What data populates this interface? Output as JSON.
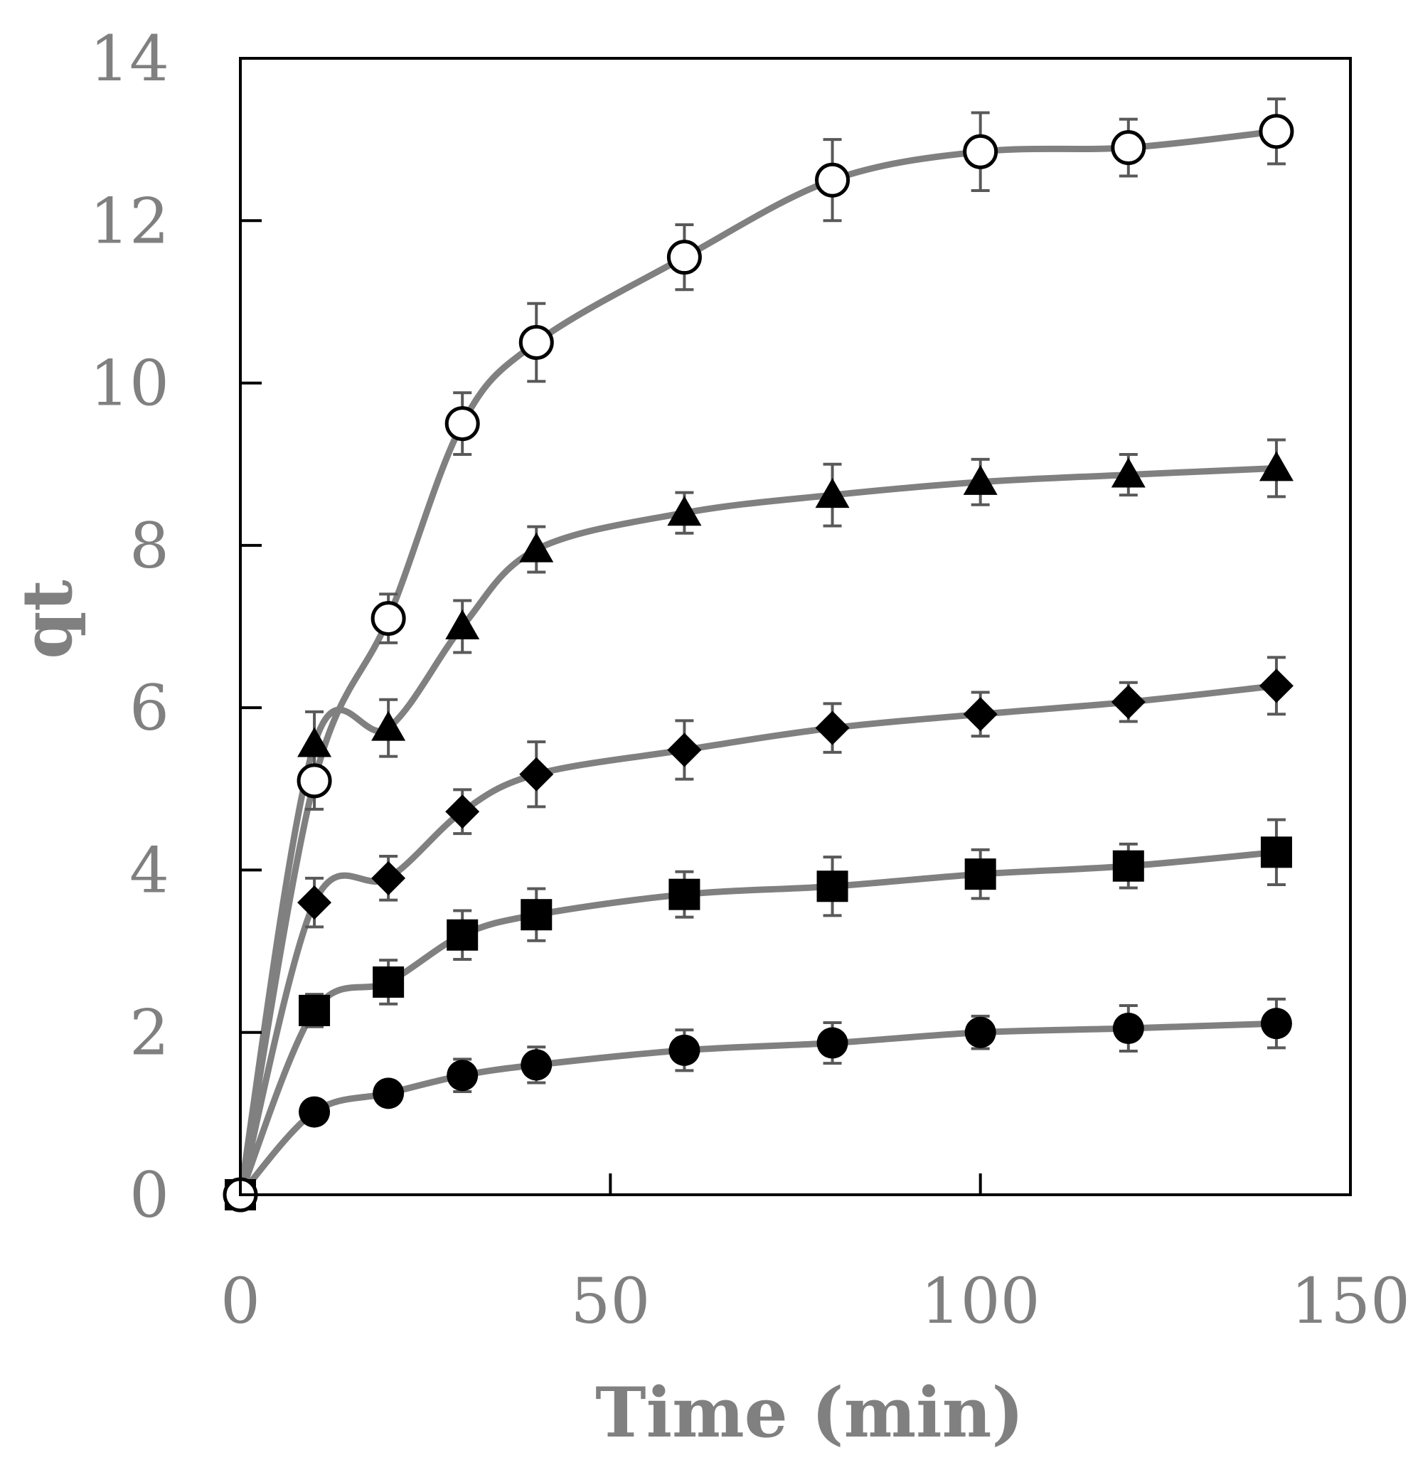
{
  "chart_data": {
    "type": "line",
    "title": "",
    "xlabel": "Time (min)",
    "ylabel": "qt",
    "xlim": [
      0,
      150
    ],
    "ylim": [
      0,
      14
    ],
    "x_ticks": [
      0,
      50,
      100,
      150
    ],
    "y_ticks": [
      0,
      2,
      4,
      6,
      8,
      10,
      12,
      14
    ],
    "grid": false,
    "legend": "none",
    "line_color": "#808080",
    "marker_color": "#000000",
    "error_bar_color": "#595959",
    "x": [
      0,
      10,
      20,
      30,
      40,
      60,
      80,
      100,
      120,
      140
    ],
    "series": [
      {
        "marker": "open-circle",
        "values": [
          0,
          5.1,
          7.1,
          9.5,
          10.5,
          11.55,
          12.5,
          12.85,
          12.9,
          13.1
        ],
        "errors": [
          0,
          0.35,
          0.3,
          0.38,
          0.48,
          0.4,
          0.5,
          0.48,
          0.35,
          0.4
        ]
      },
      {
        "marker": "filled-triangle",
        "values": [
          0,
          5.55,
          5.75,
          7.0,
          7.95,
          8.4,
          8.62,
          8.78,
          8.87,
          8.95
        ],
        "errors": [
          0,
          0.4,
          0.35,
          0.32,
          0.28,
          0.25,
          0.38,
          0.28,
          0.25,
          0.35
        ]
      },
      {
        "marker": "filled-diamond",
        "values": [
          0,
          3.6,
          3.9,
          4.72,
          5.18,
          5.48,
          5.75,
          5.92,
          6.07,
          6.27
        ],
        "errors": [
          0,
          0.3,
          0.27,
          0.27,
          0.4,
          0.36,
          0.3,
          0.27,
          0.24,
          0.35
        ]
      },
      {
        "marker": "filled-square",
        "values": [
          0,
          2.27,
          2.62,
          3.2,
          3.45,
          3.7,
          3.8,
          3.95,
          4.05,
          4.22
        ],
        "errors": [
          0,
          0.2,
          0.27,
          0.3,
          0.32,
          0.28,
          0.36,
          0.3,
          0.27,
          0.4
        ]
      },
      {
        "marker": "filled-circle",
        "values": [
          0,
          1.02,
          1.25,
          1.47,
          1.6,
          1.78,
          1.87,
          2.0,
          2.05,
          2.11
        ],
        "errors": [
          0,
          0.14,
          0.14,
          0.2,
          0.22,
          0.25,
          0.25,
          0.2,
          0.28,
          0.3
        ]
      }
    ]
  }
}
